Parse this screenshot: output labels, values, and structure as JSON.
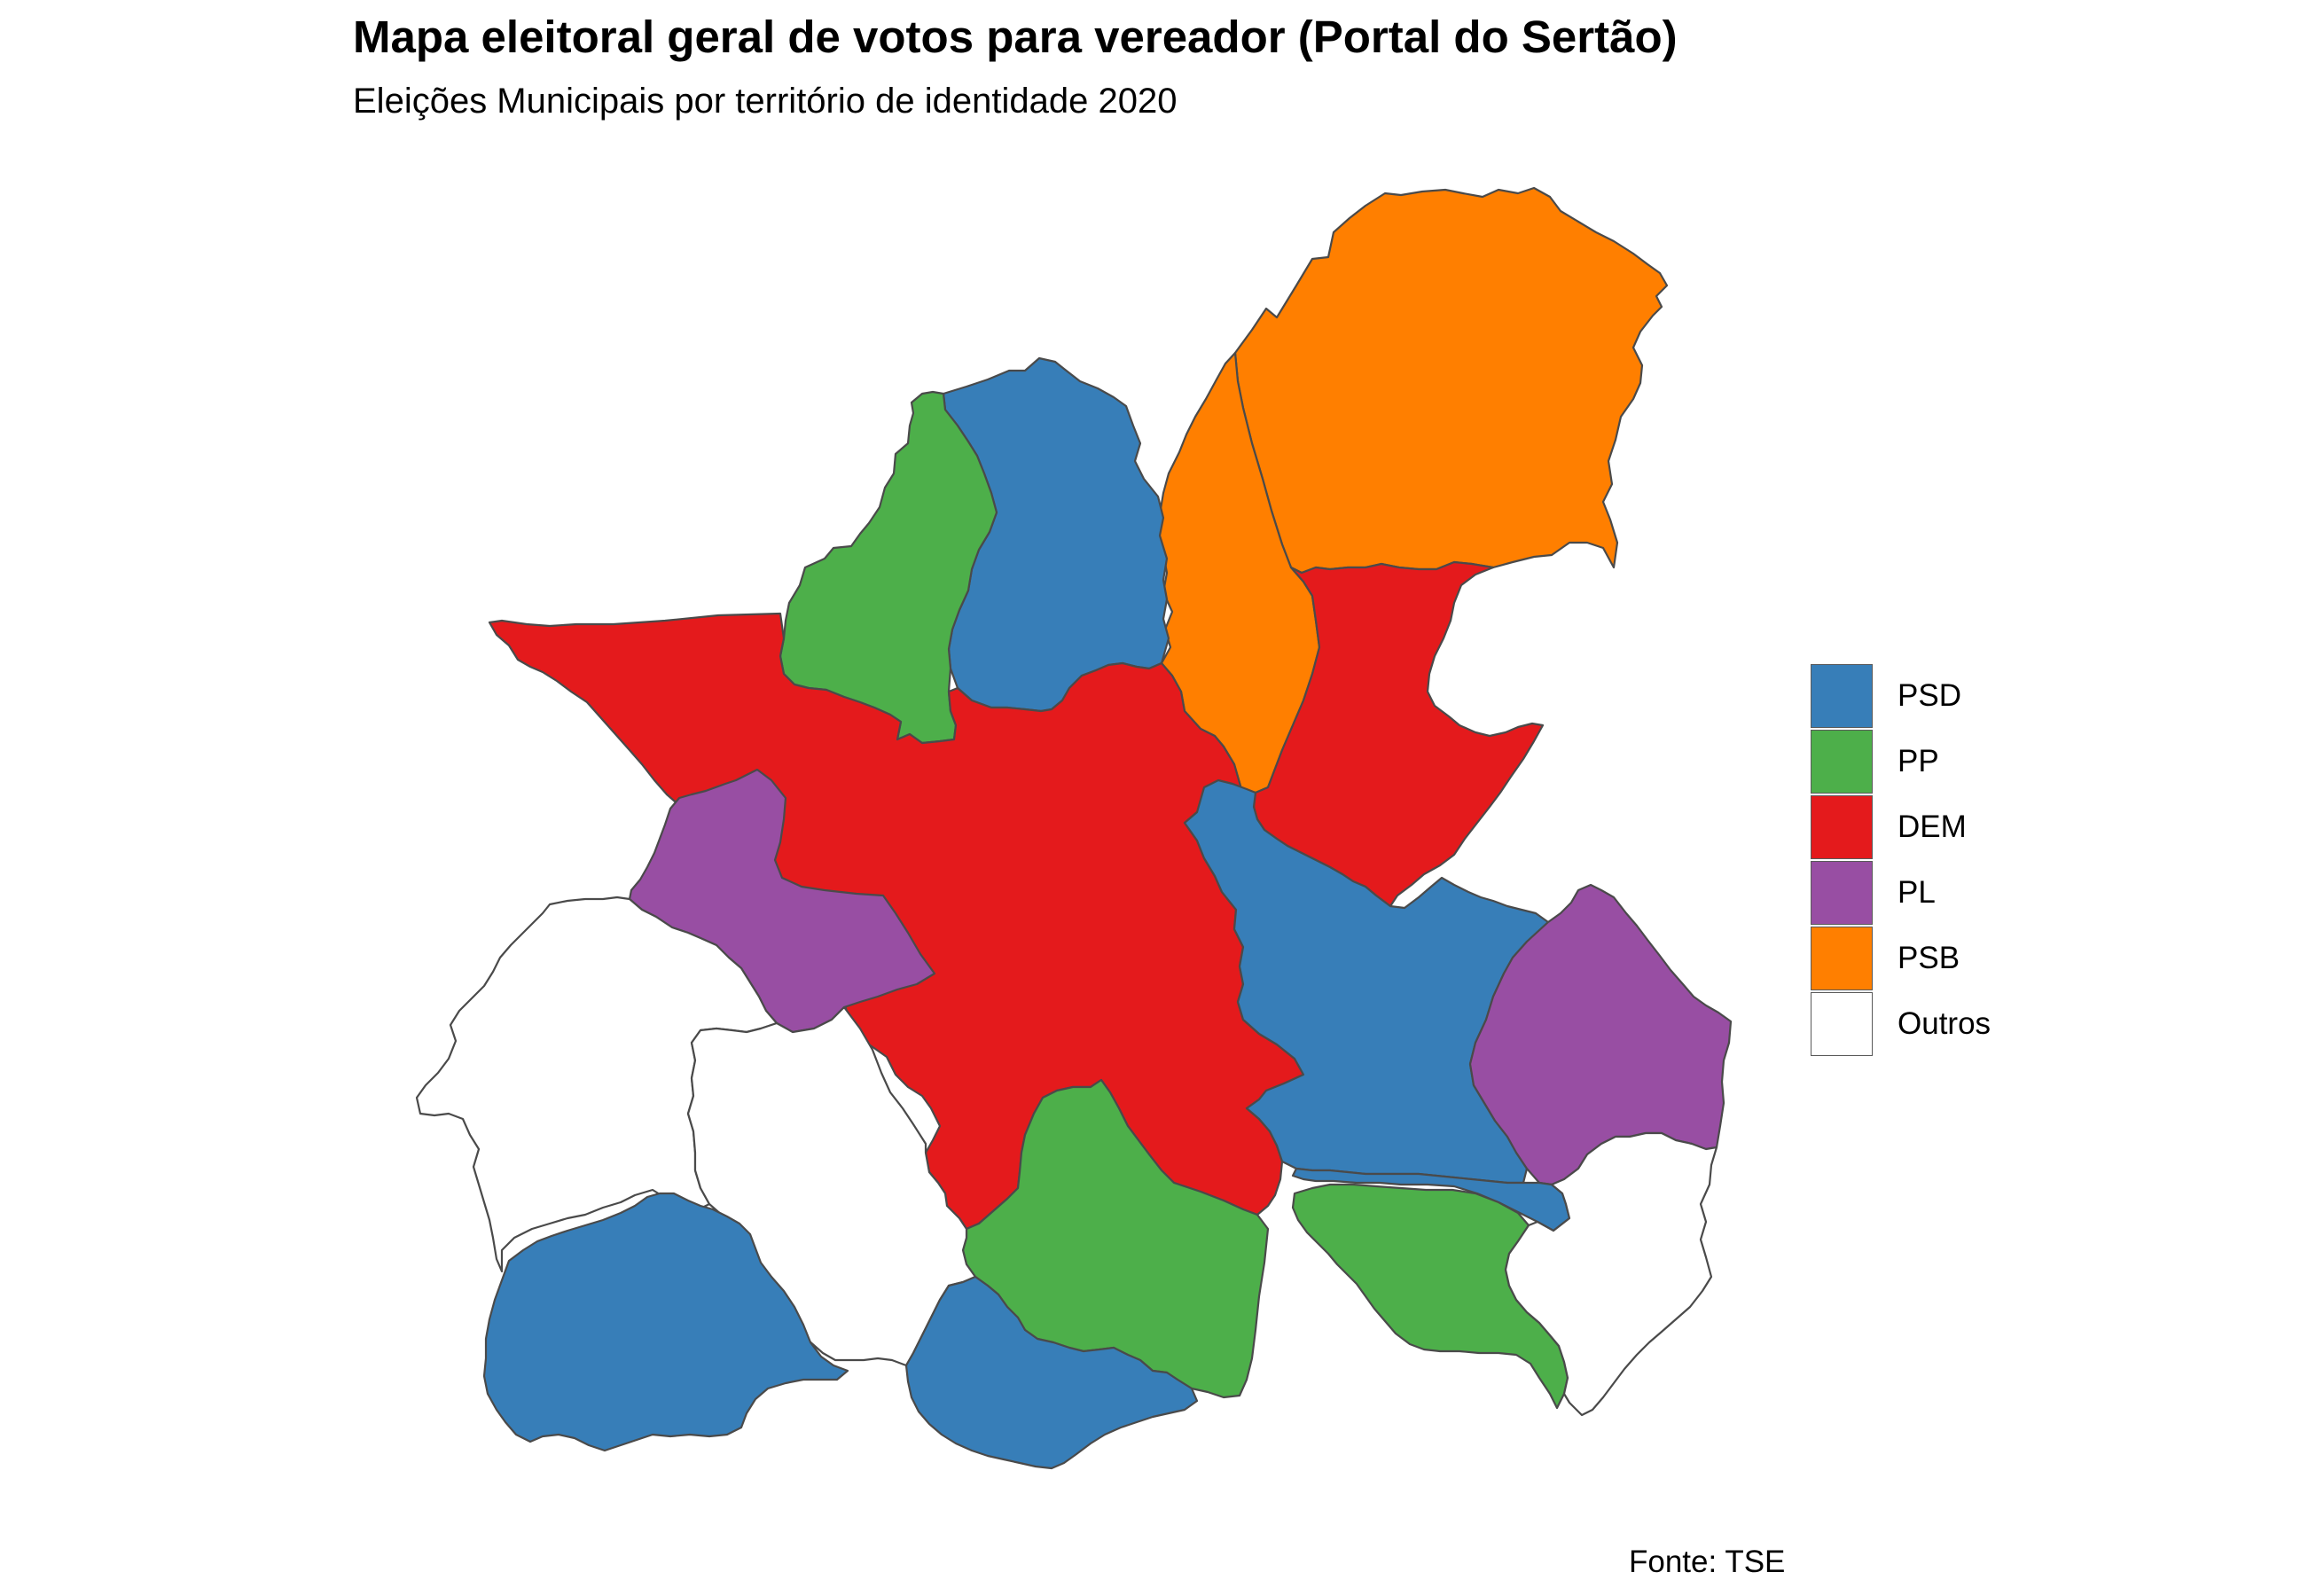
{
  "title": "Mapa eleitoral geral de votos para vereador (Portal do Sertão)",
  "subtitle": "Eleições Municipais por território de identidade 2020",
  "caption": "Fonte: TSE",
  "legend": [
    {
      "label": "PSD",
      "color": "#377EB8"
    },
    {
      "label": "PP",
      "color": "#4DAF4A"
    },
    {
      "label": "DEM",
      "color": "#E41A1C"
    },
    {
      "label": "PL",
      "color": "#984EA3"
    },
    {
      "label": "PSB",
      "color": "#FF7F00"
    },
    {
      "label": "Outros",
      "color": "#FFFFFF"
    }
  ],
  "regions": [
    {
      "party": "PSB",
      "color": "#FF7F00"
    },
    {
      "party": "PSB",
      "color": "#FF7F00"
    },
    {
      "party": "PSD",
      "color": "#377EB8"
    },
    {
      "party": "PP",
      "color": "#4DAF4A"
    },
    {
      "party": "DEM",
      "color": "#E41A1C"
    },
    {
      "party": "DEM",
      "color": "#E41A1C"
    },
    {
      "party": "PL",
      "color": "#984EA3"
    },
    {
      "party": "PSD",
      "color": "#377EB8"
    },
    {
      "party": "PL",
      "color": "#984EA3"
    },
    {
      "party": "PSD",
      "color": "#377EB8"
    },
    {
      "party": "PP",
      "color": "#4DAF4A"
    },
    {
      "party": "PP",
      "color": "#4DAF4A"
    },
    {
      "party": "Outros",
      "color": "#FFFFFF"
    },
    {
      "party": "Outros",
      "color": "#FFFFFF"
    },
    {
      "party": "Outros",
      "color": "#FFFFFF"
    },
    {
      "party": "PSD",
      "color": "#377EB8"
    },
    {
      "party": "PSD",
      "color": "#377EB8"
    }
  ]
}
